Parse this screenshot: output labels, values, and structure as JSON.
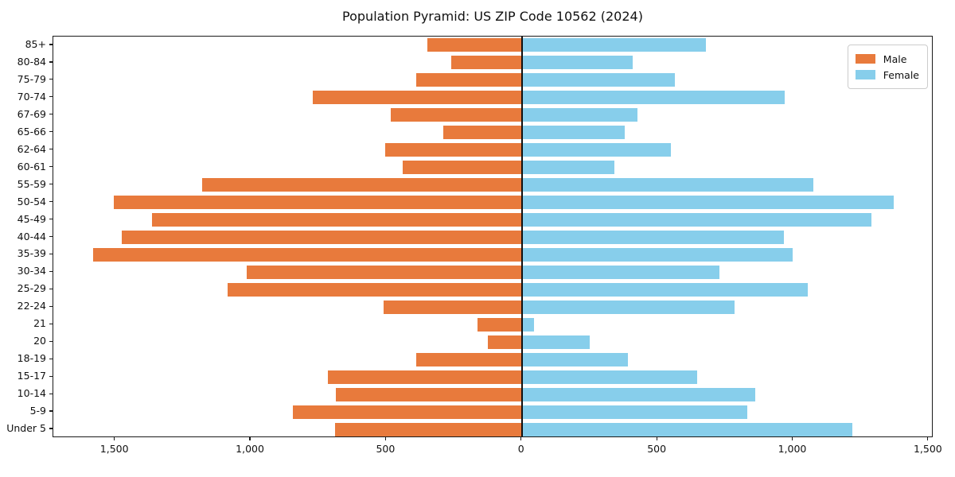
{
  "chart_data": {
    "type": "bar",
    "variant": "population-pyramid-horizontal",
    "title": "Population Pyramid: US ZIP Code 10562 (2024)",
    "ylabel": "",
    "xlabel": "",
    "grid": false,
    "legend_position": "upper right",
    "zero_line_color": "#111111",
    "spine_color": "#1a1a1a",
    "categories_top_to_bottom": [
      "85+",
      "80-84",
      "75-79",
      "70-74",
      "67-69",
      "65-66",
      "62-64",
      "60-61",
      "55-59",
      "50-54",
      "45-49",
      "40-44",
      "35-39",
      "30-34",
      "25-29",
      "22-24",
      "21",
      "20",
      "18-19",
      "15-17",
      "10-14",
      "5-9",
      "Under 5"
    ],
    "series": [
      {
        "name": "Male",
        "side": "left",
        "color": "#e87a3c",
        "values": [
          350,
          260,
          390,
          770,
          485,
          290,
          505,
          440,
          1180,
          1505,
          1365,
          1475,
          1580,
          1015,
          1085,
          510,
          165,
          125,
          390,
          715,
          685,
          845,
          690
        ]
      },
      {
        "name": "Female",
        "side": "right",
        "color": "#87ceeb",
        "values": [
          680,
          410,
          565,
          970,
          425,
          380,
          550,
          340,
          1075,
          1370,
          1290,
          965,
          1000,
          730,
          1055,
          785,
          45,
          250,
          390,
          645,
          860,
          830,
          1220
        ]
      }
    ],
    "x_ticks": [
      {
        "value": -1500,
        "label": "1,500"
      },
      {
        "value": -1000,
        "label": "1,000"
      },
      {
        "value": -500,
        "label": "500"
      },
      {
        "value": 0,
        "label": "0"
      },
      {
        "value": 500,
        "label": "500"
      },
      {
        "value": 1000,
        "label": "1,000"
      },
      {
        "value": 1500,
        "label": "1,500"
      }
    ],
    "xlim": [
      -1728,
      1518
    ]
  }
}
